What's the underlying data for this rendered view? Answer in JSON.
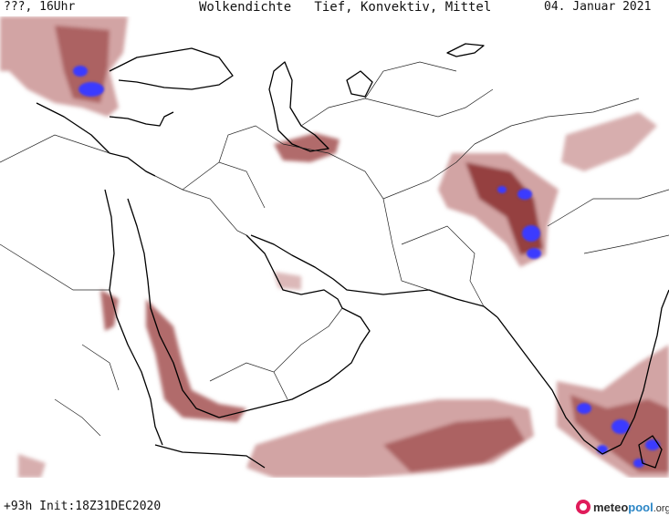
{
  "header": {
    "left": "???, 16Uhr",
    "title": "Wolkendichte   Tief, Konvektiv, Mittel",
    "date": "04. Januar 2021"
  },
  "footer": {
    "run": "+93h Init:18Z31DEC2020"
  },
  "logo": {
    "part_a": "meteo",
    "part_b": "pool",
    "part_c": ".org"
  },
  "colors": {
    "cloud_low": "#cd9a9a",
    "cloud_mid": "#a85b5b",
    "cloud_high": "#8b2f2f",
    "convective": "#3a3aff",
    "coast": "#000000",
    "border": "#222222"
  }
}
